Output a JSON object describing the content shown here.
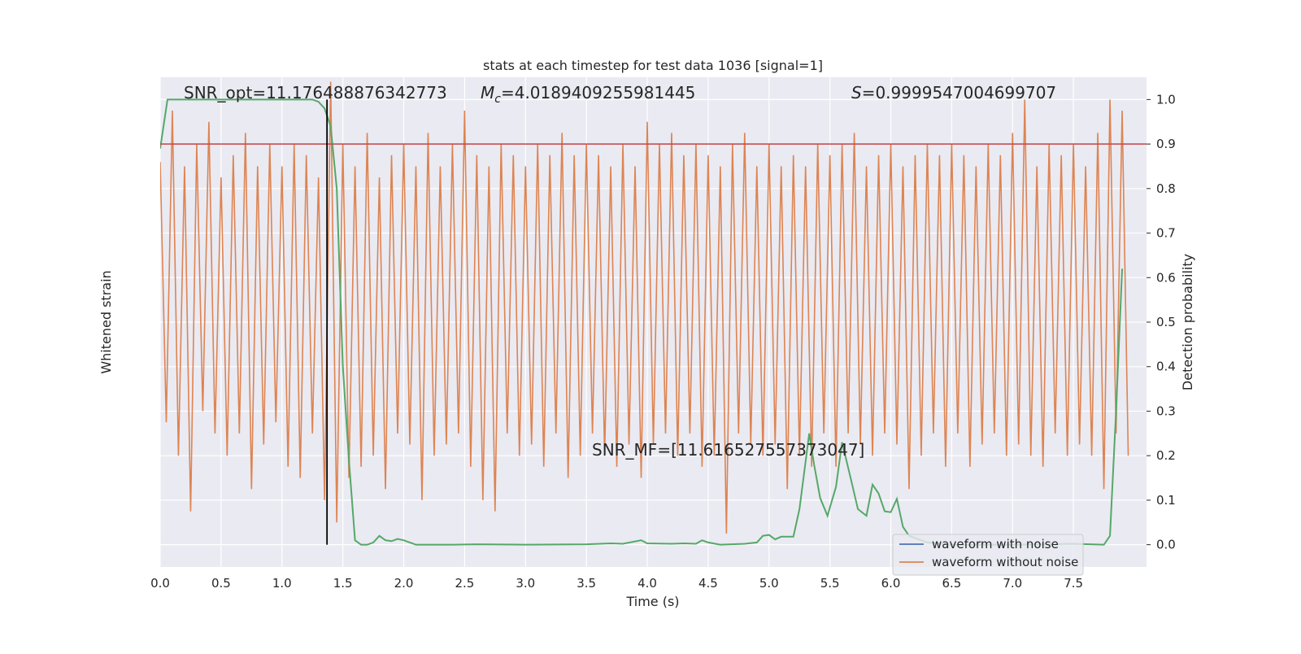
{
  "chart_data": {
    "type": "line",
    "title": "stats at each timestep for test data 1036 [signal=1]",
    "xlabel": "Time (s)",
    "ylabel": "Whitened strain",
    "y2label": "Detection probability",
    "xlim": [
      0,
      8.1
    ],
    "ylim": [
      -1.2,
      1.0
    ],
    "y2lim": [
      -0.05,
      1.05
    ],
    "xticks": [
      {
        "value": 0,
        "label": "0.0"
      },
      0.5,
      {
        "value": 1,
        "label": "1.0"
      },
      1.5,
      {
        "value": 2,
        "label": "2.0"
      },
      2.5,
      {
        "value": 3,
        "label": "3.0"
      },
      3.5,
      {
        "value": 4,
        "label": "4.0"
      },
      4.5,
      {
        "value": 5,
        "label": "5.0"
      },
      5.5,
      {
        "value": 6,
        "label": "6.0"
      },
      6.5,
      {
        "value": 7,
        "label": "7.0"
      },
      7.5
    ],
    "y2ticks": [
      {
        "value": 0,
        "label": "0.0"
      },
      0.1,
      0.2,
      0.3,
      0.4,
      0.5,
      0.6,
      0.7,
      0.8,
      0.9,
      {
        "value": 1,
        "label": "1.0"
      }
    ],
    "grid": true,
    "legend": "lower right",
    "threshold": 0.9,
    "threshold_color": "#c44e52",
    "marker_x": 1.37,
    "marker_color": "#000000",
    "annotations": [
      {
        "text": "SNR_opt=11.176488876342773"
      },
      {
        "symbol": "M",
        "subscript": "c",
        "text": "=4.0189409255981445"
      },
      {
        "symbol": "S",
        "text": "=0.9999547004699707"
      },
      {
        "text": "SNR_MF=[11.616527557373047]"
      }
    ],
    "series": [
      {
        "name": "waveform with noise",
        "color": "#4c72b0",
        "x": [],
        "values": []
      },
      {
        "name": "waveform without noise",
        "color": "#dd8452",
        "x": [
          0,
          0.05,
          0.1,
          0.15,
          0.2,
          0.25,
          0.3,
          0.35,
          0.4,
          0.45,
          0.5,
          0.55,
          0.6,
          0.65,
          0.7,
          0.75,
          0.8,
          0.85,
          0.9,
          0.95,
          1,
          1.05,
          1.1,
          1.15,
          1.2,
          1.25,
          1.3,
          1.35,
          1.4,
          1.45,
          1.5,
          1.55,
          1.6,
          1.65,
          1.7,
          1.75,
          1.8,
          1.85,
          1.9,
          1.95,
          2,
          2.05,
          2.1,
          2.15,
          2.2,
          2.25,
          2.3,
          2.35,
          2.4,
          2.45,
          2.5,
          2.55,
          2.6,
          2.65,
          2.7,
          2.75,
          2.8,
          2.85,
          2.9,
          2.95,
          3,
          3.05,
          3.1,
          3.15,
          3.2,
          3.25,
          3.3,
          3.35,
          3.4,
          3.45,
          3.5,
          3.55,
          3.6,
          3.65,
          3.7,
          3.75,
          3.8,
          3.85,
          3.9,
          3.95,
          4,
          4.05,
          4.1,
          4.15,
          4.2,
          4.25,
          4.3,
          4.35,
          4.4,
          4.45,
          4.5,
          4.55,
          4.6,
          4.65,
          4.7,
          4.75,
          4.8,
          4.85,
          4.9,
          4.95,
          5,
          5.05,
          5.1,
          5.15,
          5.2,
          5.25,
          5.3,
          5.35,
          5.4,
          5.45,
          5.5,
          5.55,
          5.6,
          5.65,
          5.7,
          5.75,
          5.8,
          5.85,
          5.9,
          5.95,
          6,
          6.05,
          6.1,
          6.15,
          6.2,
          6.25,
          6.3,
          6.35,
          6.4,
          6.45,
          6.5,
          6.55,
          6.6,
          6.65,
          6.7,
          6.75,
          6.8,
          6.85,
          6.9,
          6.95,
          7,
          7.05,
          7.1,
          7.15,
          7.2,
          7.25,
          7.3,
          7.35,
          7.4,
          7.45,
          7.5,
          7.55,
          7.6,
          7.65,
          7.7,
          7.75,
          7.8,
          7.85,
          7.9,
          7.95
        ],
        "values": [
          0.62,
          -0.55,
          0.85,
          -0.7,
          0.6,
          -0.95,
          0.7,
          -0.5,
          0.8,
          -0.6,
          0.55,
          -0.7,
          0.65,
          -0.6,
          0.75,
          -0.85,
          0.6,
          -0.65,
          0.7,
          -0.55,
          0.6,
          -0.75,
          0.7,
          -0.8,
          0.65,
          -0.6,
          0.55,
          -0.9,
          0.98,
          -1.0,
          0.7,
          -0.8,
          0.6,
          -0.75,
          0.75,
          -0.7,
          0.55,
          -0.85,
          0.65,
          -0.6,
          0.7,
          -0.65,
          0.6,
          -0.9,
          0.75,
          -0.7,
          0.6,
          -0.65,
          0.7,
          -0.6,
          0.85,
          -0.75,
          0.65,
          -0.9,
          0.6,
          -0.95,
          0.7,
          -0.6,
          0.65,
          -0.7,
          0.6,
          -0.65,
          0.7,
          -0.75,
          0.65,
          -0.6,
          0.75,
          -0.8,
          0.65,
          -0.7,
          0.7,
          -0.6,
          0.65,
          -0.7,
          0.6,
          -0.75,
          0.7,
          -0.65,
          0.6,
          -0.8,
          0.8,
          -0.65,
          0.7,
          -0.6,
          0.75,
          -0.7,
          0.65,
          -0.6,
          0.7,
          -0.75,
          0.65,
          -0.7,
          0.6,
          -1.05,
          0.7,
          -0.6,
          0.75,
          -0.65,
          0.6,
          -0.7,
          0.7,
          -0.65,
          0.6,
          -0.85,
          0.65,
          -0.7,
          0.6,
          -0.75,
          0.7,
          -0.6,
          0.65,
          -0.75,
          0.7,
          -0.6,
          0.75,
          -0.65,
          0.6,
          -0.7,
          0.65,
          -0.6,
          0.7,
          -0.65,
          0.6,
          -0.85,
          0.65,
          -0.7,
          0.7,
          -0.6,
          0.65,
          -0.75,
          0.7,
          -0.6,
          0.65,
          -0.75,
          0.6,
          -0.65,
          0.7,
          -0.6,
          0.65,
          -0.7,
          0.75,
          -0.65,
          0.9,
          -0.7,
          0.6,
          -0.75,
          0.7,
          -0.6,
          0.65,
          -0.7,
          0.7,
          -0.65,
          0.6,
          -0.7,
          0.75,
          -0.85,
          0.9,
          -0.6,
          0.85,
          -0.7
        ]
      },
      {
        "color": "#55a868",
        "axis": "y2",
        "x": [
          0,
          0.06,
          0.3,
          0.6,
          0.9,
          1.2,
          1.25,
          1.3,
          1.35,
          1.4,
          1.45,
          1.5,
          1.55,
          1.6,
          1.65,
          1.7,
          1.75,
          1.8,
          1.85,
          1.9,
          1.95,
          2.0,
          2.05,
          2.1,
          2.2,
          2.4,
          2.6,
          3.0,
          3.5,
          3.7,
          3.8,
          3.95,
          4.0,
          4.2,
          4.3,
          4.4,
          4.45,
          4.5,
          4.6,
          4.8,
          4.9,
          4.95,
          5.0,
          5.05,
          5.1,
          5.2,
          5.25,
          5.33,
          5.37,
          5.42,
          5.48,
          5.55,
          5.6,
          5.67,
          5.73,
          5.8,
          5.85,
          5.9,
          5.95,
          6.0,
          6.05,
          6.1,
          6.15,
          6.3,
          6.5,
          7.0,
          7.5,
          7.75,
          7.8,
          7.85,
          7.9
        ],
        "values": [
          0.89,
          1.0,
          1.0,
          1.0,
          1.0,
          1.0,
          1.0,
          0.995,
          0.98,
          0.94,
          0.8,
          0.4,
          0.19,
          0.01,
          0.0,
          0.0,
          0.005,
          0.02,
          0.01,
          0.008,
          0.013,
          0.01,
          0.005,
          0.0,
          0.0,
          0.0,
          0.001,
          0.0,
          0.001,
          0.003,
          0.002,
          0.01,
          0.003,
          0.002,
          0.003,
          0.002,
          0.01,
          0.005,
          0.0,
          0.002,
          0.005,
          0.02,
          0.022,
          0.012,
          0.018,
          0.018,
          0.08,
          0.25,
          0.18,
          0.105,
          0.065,
          0.13,
          0.23,
          0.15,
          0.08,
          0.065,
          0.135,
          0.115,
          0.075,
          0.073,
          0.103,
          0.04,
          0.02,
          0.005,
          0.0,
          0.0,
          0.002,
          0.0,
          0.02,
          0.3,
          0.62
        ]
      }
    ]
  }
}
